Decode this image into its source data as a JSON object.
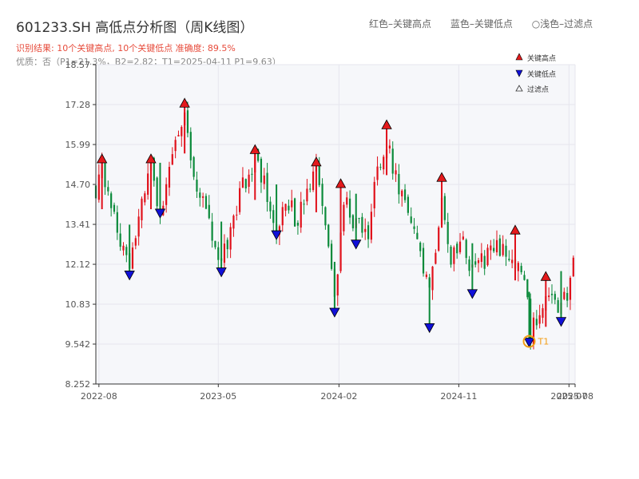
{
  "title": "601233.SH 高低点分析图（周K线图）",
  "subtitle": "识别结果: 10个关键高点, 10个关键低点   准确度: 89.5%",
  "subtitle2": "优质：否（P1=21.3%，B2=2.82；T1=2025-04-11 P1=9.63）",
  "top_legend": {
    "red": "红色–关键高点",
    "blue": "蓝色–关键低点",
    "light": "○浅色–过滤点"
  },
  "legend": {
    "high": "关键高点",
    "low": "关键低点",
    "filtered": "过滤点"
  },
  "colors": {
    "up": "#e0101a",
    "down": "#0b8a3a",
    "high_marker": "#e41a1c",
    "low_marker": "#1010d8",
    "t1": "#f39c12",
    "grid": "#e6e6ee",
    "plot_bg": "#f6f7fa"
  },
  "chart_data": {
    "type": "candlestick",
    "xlim": [
      "2022-07-25",
      "2025-07-25"
    ],
    "ylim": [
      8.252,
      18.57
    ],
    "yticks": [
      8.252,
      9.542,
      10.83,
      12.12,
      13.41,
      14.7,
      15.99,
      17.28,
      18.57
    ],
    "ytick_labels": [
      "8.252",
      "9.542",
      "10.83",
      "12.12",
      "13.41",
      "14.70",
      "15.99",
      "17.28",
      "18.57"
    ],
    "xticks": [
      "2022-08-01",
      "2023-05-01",
      "2024-02-01",
      "2024-11-01",
      "2025-07-11",
      "2025-07-25"
    ],
    "xtick_labels": [
      "2022-08",
      "2023-05",
      "2024-02",
      "2024-11",
      "2025-07",
      "2025-08"
    ],
    "close_path": [
      [
        "2022-07-25",
        14.6
      ],
      [
        "2022-08-08",
        15.1
      ],
      [
        "2022-08-22",
        14.5
      ],
      [
        "2022-09-12",
        13.4
      ],
      [
        "2022-10-10",
        11.9
      ],
      [
        "2022-10-31",
        13.8
      ],
      [
        "2022-11-28",
        15.2
      ],
      [
        "2022-12-19",
        13.9
      ],
      [
        "2023-01-16",
        15.6
      ],
      [
        "2023-02-13",
        17.1
      ],
      [
        "2023-03-06",
        15.0
      ],
      [
        "2023-03-27",
        14.2
      ],
      [
        "2023-04-24",
        12.5
      ],
      [
        "2023-05-08",
        12.1
      ],
      [
        "2023-05-29",
        13.2
      ],
      [
        "2023-06-26",
        14.6
      ],
      [
        "2023-07-24",
        15.6
      ],
      [
        "2023-08-14",
        14.7
      ],
      [
        "2023-09-11",
        13.2
      ],
      [
        "2023-10-02",
        14.2
      ],
      [
        "2023-10-30",
        13.5
      ],
      [
        "2023-11-20",
        14.4
      ],
      [
        "2023-12-11",
        15.1
      ],
      [
        "2024-01-01",
        13.3
      ],
      [
        "2024-01-22",
        10.9
      ],
      [
        "2024-02-12",
        14.3
      ],
      [
        "2024-03-11",
        13.4
      ],
      [
        "2024-04-08",
        13.0
      ],
      [
        "2024-04-29",
        15.4
      ],
      [
        "2024-05-20",
        16.0
      ],
      [
        "2024-06-10",
        15.0
      ],
      [
        "2024-07-08",
        13.6
      ],
      [
        "2024-08-05",
        12.3
      ],
      [
        "2024-08-26",
        11.1
      ],
      [
        "2024-09-23",
        14.5
      ],
      [
        "2024-10-14",
        12.2
      ],
      [
        "2024-11-11",
        12.7
      ],
      [
        "2024-12-02",
        11.9
      ],
      [
        "2025-01-06",
        12.4
      ],
      [
        "2025-02-10",
        12.7
      ],
      [
        "2025-03-03",
        12.2
      ],
      [
        "2025-03-31",
        11.7
      ],
      [
        "2025-04-14",
        9.8
      ],
      [
        "2025-05-05",
        10.8
      ],
      [
        "2025-05-26",
        11.0
      ],
      [
        "2025-06-16",
        10.6
      ],
      [
        "2025-07-07",
        11.2
      ],
      [
        "2025-07-25",
        12.3
      ]
    ],
    "key_highs": [
      {
        "date": "2022-08-08",
        "price": 15.5
      },
      {
        "date": "2022-11-28",
        "price": 15.5
      },
      {
        "date": "2023-02-13",
        "price": 17.3
      },
      {
        "date": "2023-07-24",
        "price": 15.8
      },
      {
        "date": "2023-12-11",
        "price": 15.4
      },
      {
        "date": "2024-02-05",
        "price": 14.7
      },
      {
        "date": "2024-05-20",
        "price": 16.6
      },
      {
        "date": "2024-09-23",
        "price": 14.9
      },
      {
        "date": "2025-03-10",
        "price": 13.2
      },
      {
        "date": "2025-05-19",
        "price": 11.7
      }
    ],
    "key_lows": [
      {
        "date": "2022-10-10",
        "price": 11.8
      },
      {
        "date": "2022-12-19",
        "price": 13.8
      },
      {
        "date": "2023-05-08",
        "price": 11.9
      },
      {
        "date": "2023-09-11",
        "price": 13.1
      },
      {
        "date": "2024-01-22",
        "price": 10.6
      },
      {
        "date": "2024-03-11",
        "price": 12.8
      },
      {
        "date": "2024-08-26",
        "price": 10.1
      },
      {
        "date": "2024-12-02",
        "price": 11.2
      },
      {
        "date": "2025-04-11",
        "price": 9.63
      },
      {
        "date": "2025-06-23",
        "price": 10.3
      }
    ],
    "t1": {
      "date": "2025-04-11",
      "price": 9.63,
      "label": "T1"
    }
  }
}
